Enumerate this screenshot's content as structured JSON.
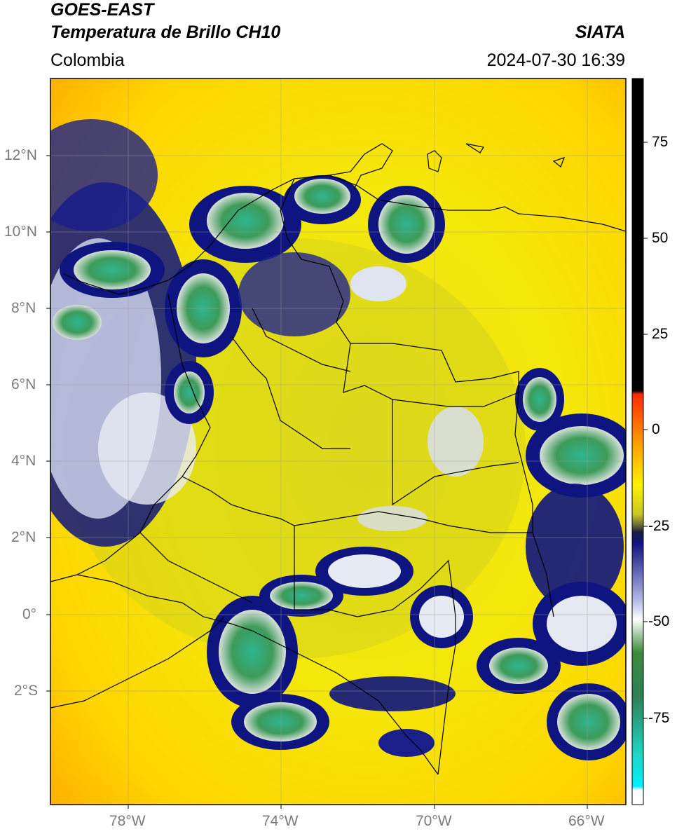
{
  "header": {
    "satellite": "GOES-EAST",
    "product": "Temperatura de Brillo CH10",
    "region": "Colombia",
    "agency": "SIATA",
    "datetime": "2024-07-30 16:39"
  },
  "map": {
    "lat_ticks": [
      "12°N",
      "10°N",
      "8°N",
      "6°N",
      "4°N",
      "2°N",
      "0°",
      "2°S"
    ],
    "lon_ticks": [
      "78°W",
      "74°W",
      "70°W",
      "66°W"
    ]
  },
  "colorbar": {
    "labels": [
      "75",
      "50",
      "25",
      "0",
      "-25",
      "-50",
      "-75"
    ],
    "colors": {
      "black": "#000000",
      "red": "#ff2a00",
      "orange": "#ff9a00",
      "yellow": "#fff200",
      "olive": "#c8c820",
      "navy": "#0e1480",
      "white": "#ffffff",
      "green": "#3d8b3d",
      "cyan": "#1dd6c4"
    }
  }
}
